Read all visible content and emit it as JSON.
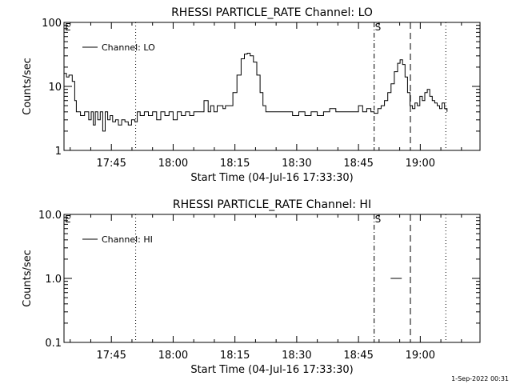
{
  "footer": {
    "timestamp": "1-Sep-2022 00:31"
  },
  "chart_data": [
    {
      "type": "line",
      "title": "RHESSI PARTICLE_RATE Channel: LO",
      "xlabel": "Start Time (04-Jul-16 17:33:30)",
      "ylabel": "Counts/sec",
      "yscale": "log",
      "ylim": [
        1,
        100
      ],
      "yticks": [
        1,
        10,
        100
      ],
      "ytick_labels": [
        "1",
        "10",
        "100"
      ],
      "xlim_minutes": [
        0,
        101
      ],
      "xticks": [
        "17:45",
        "18:00",
        "18:15",
        "18:30",
        "18:45",
        "19:00"
      ],
      "xtick_minutes": [
        11.5,
        26.5,
        41.5,
        56.5,
        71.5,
        86.5
      ],
      "legend": {
        "label": "Channel: LO",
        "placement": "top-left"
      },
      "markers": [
        {
          "minute": 17.4,
          "style": "dotted",
          "label": ""
        },
        {
          "minute": 75.3,
          "style": "dashdot",
          "label": "S"
        },
        {
          "minute": 84.1,
          "style": "dashed",
          "label": ""
        },
        {
          "minute": 92.7,
          "style": "dotted",
          "label": ""
        }
      ],
      "corner_label": "E",
      "series": [
        {
          "name": "Channel: LO",
          "x_minutes": [
            0,
            0.6,
            1.2,
            2,
            2.6,
            3,
            3.5,
            4,
            5,
            6,
            6.6,
            7.1,
            7.6,
            8.2,
            8.8,
            9.4,
            10,
            10.6,
            11.2,
            11.8,
            12.5,
            13.2,
            14,
            14.8,
            15.6,
            16.4,
            17.2,
            17.8,
            18.5,
            19.5,
            20.5,
            21.5,
            22.5,
            23.5,
            24.5,
            25.5,
            26.5,
            27.5,
            28.5,
            29.5,
            30.5,
            31.5,
            32.5,
            33.5,
            34,
            35,
            35.6,
            36.4,
            37.2,
            38,
            38.6,
            39.2,
            40,
            41,
            42,
            43,
            43.8,
            44.5,
            45.2,
            46,
            46.8,
            47.6,
            48.3,
            49,
            49.8,
            51,
            52.5,
            54,
            55.5,
            57,
            58.5,
            60,
            61.5,
            63,
            64.5,
            66,
            67.5,
            69,
            70.5,
            71.5,
            72.5,
            73.5,
            74.5,
            75.3,
            76.2,
            77,
            77.8,
            78.6,
            79.4,
            80.2,
            81,
            81.6,
            82.2,
            82.8,
            83.4,
            84,
            84.6,
            85.2,
            85.8,
            86.4,
            87,
            87.6,
            88.2,
            88.8,
            89.4,
            90,
            90.6,
            91.2,
            91.8,
            92.4,
            93
          ],
          "values": [
            16,
            14,
            15,
            12,
            6,
            4,
            4,
            3.5,
            4,
            3,
            4,
            2.5,
            4,
            3,
            4,
            2,
            4,
            3,
            3.5,
            2.8,
            3,
            2.5,
            3,
            2.8,
            2.5,
            3,
            2.8,
            4,
            3.5,
            4,
            3.5,
            4,
            3,
            4,
            3.5,
            4,
            3,
            4,
            3.5,
            4,
            3.5,
            4,
            4,
            4,
            6,
            4,
            5,
            4,
            5,
            5,
            4.5,
            5,
            5,
            8,
            15,
            27,
            32,
            33,
            30,
            24,
            15,
            8,
            5,
            4,
            4,
            4,
            4,
            4,
            3.5,
            4,
            3.5,
            4,
            3.5,
            4,
            4.5,
            4,
            4,
            4,
            4,
            5,
            4,
            4.5,
            4,
            3.8,
            4.5,
            5,
            6,
            8,
            11,
            17,
            23,
            26,
            22,
            14,
            8,
            5,
            4.5,
            5.5,
            5,
            7,
            6,
            8,
            9,
            7,
            6,
            5.5,
            5,
            4.5,
            5.5,
            4.5,
            4
          ]
        }
      ]
    },
    {
      "type": "line",
      "title": "RHESSI PARTICLE_RATE Channel: HI",
      "xlabel": "Start Time (04-Jul-16 17:33:30)",
      "ylabel": "Counts/sec",
      "yscale": "log",
      "ylim": [
        0.1,
        10
      ],
      "yticks": [
        0.1,
        1,
        10
      ],
      "ytick_labels": [
        "0.1",
        "1.0",
        "10.0"
      ],
      "xlim_minutes": [
        0,
        101
      ],
      "xticks": [
        "17:45",
        "18:00",
        "18:15",
        "18:30",
        "18:45",
        "19:00"
      ],
      "xtick_minutes": [
        11.5,
        26.5,
        41.5,
        56.5,
        71.5,
        86.5
      ],
      "legend": {
        "label": "Channel: HI",
        "placement": "top-left"
      },
      "markers": [
        {
          "minute": 17.4,
          "style": "dotted",
          "label": ""
        },
        {
          "minute": 75.3,
          "style": "dashdot",
          "label": "S"
        },
        {
          "minute": 84.1,
          "style": "dashed",
          "label": ""
        },
        {
          "minute": 92.7,
          "style": "dotted",
          "label": ""
        }
      ],
      "corner_label": "E",
      "series": [
        {
          "name": "Channel: HI",
          "x_minutes": [
            79.3,
            82.0
          ],
          "values": [
            1,
            1
          ]
        }
      ]
    }
  ]
}
